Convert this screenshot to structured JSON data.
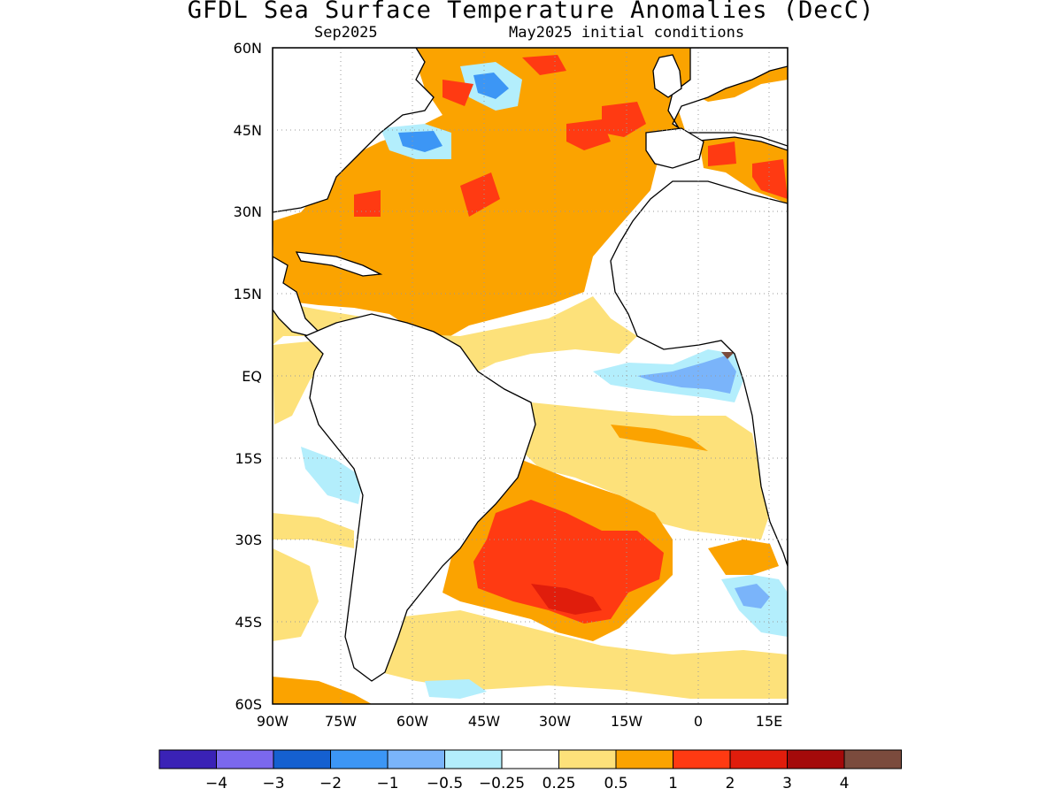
{
  "title": "GFDL Sea Surface Temperature Anomalies (DecC)",
  "subtitle_left": "Sep2025",
  "subtitle_right": "May2025 initial conditions",
  "map": {
    "lon_range": [
      -90,
      18
    ],
    "lat_range": [
      -60,
      60
    ],
    "lon_ticks": [
      "90W",
      "75W",
      "60W",
      "45W",
      "30W",
      "15W",
      "0",
      "15E"
    ],
    "lat_ticks": [
      "60N",
      "45N",
      "30N",
      "15N",
      "EQ",
      "15S",
      "30S",
      "45S",
      "60S"
    ],
    "grid": "dotted"
  },
  "colorbar": {
    "colors": [
      "#3a22b6",
      "#7b68ee",
      "#1560d0",
      "#3c96f5",
      "#7ab4fa",
      "#b3eefc",
      "#ffffff",
      "#fde17a",
      "#fba300",
      "#ff3a12",
      "#e01d0c",
      "#a40a0a",
      "#7b4b3d"
    ],
    "labels": [
      "−4",
      "−3",
      "−2",
      "−1",
      "−0.5",
      "−0.25",
      "0.25",
      "0.5",
      "1",
      "2",
      "3",
      "4"
    ]
  }
}
